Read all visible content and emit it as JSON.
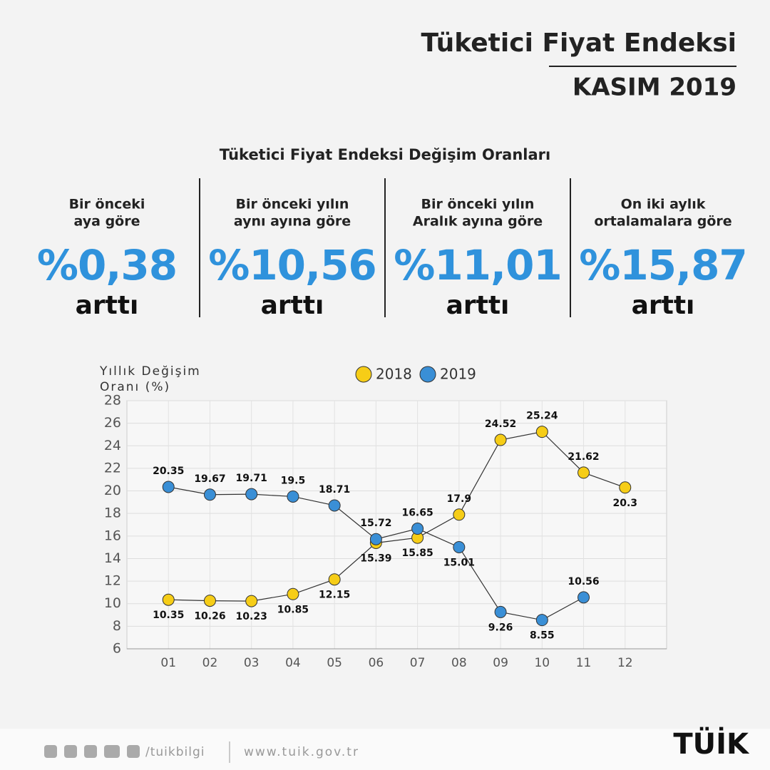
{
  "header": {
    "title": "Tüketici Fiyat Endeksi",
    "subtitle": "KASIM 2019"
  },
  "section_title": "Tüketici Fiyat Endeksi Değişim Oranları",
  "stats": [
    {
      "label_lines": [
        "Bir önceki",
        "aya göre"
      ],
      "value": "%0,38",
      "note": "arttı"
    },
    {
      "label_lines": [
        "Bir önceki yılın",
        "aynı ayına göre"
      ],
      "value": "%10,56",
      "note": "arttı"
    },
    {
      "label_lines": [
        "Bir önceki yılın",
        "Aralık ayına göre"
      ],
      "value": "%11,01",
      "note": "arttı"
    },
    {
      "label_lines": [
        "On iki aylık",
        "ortalamalara göre"
      ],
      "value": "%15,87",
      "note": "arttı"
    }
  ],
  "chart_data": {
    "type": "line",
    "y_label_lines": [
      "Yıllık Değişim",
      "Oranı (%)"
    ],
    "categories": [
      "01",
      "02",
      "03",
      "04",
      "05",
      "06",
      "07",
      "08",
      "09",
      "10",
      "11",
      "12"
    ],
    "series": [
      {
        "name": "2018",
        "color": "#f6cd17",
        "values": [
          10.35,
          10.26,
          10.23,
          10.85,
          12.15,
          15.39,
          15.85,
          17.9,
          24.52,
          25.24,
          21.62,
          20.3
        ]
      },
      {
        "name": "2019",
        "color": "#3a8fd6",
        "values": [
          20.35,
          19.67,
          19.71,
          19.5,
          18.71,
          15.72,
          16.65,
          15.01,
          9.26,
          8.55,
          10.56,
          null
        ]
      }
    ],
    "ylim": [
      6,
      28
    ],
    "yticks": [
      6,
      8,
      10,
      12,
      14,
      16,
      18,
      20,
      22,
      24,
      26,
      28
    ],
    "grid": true
  },
  "footer": {
    "handle": "/tuikbilgi",
    "url": "www.tuik.gov.tr",
    "logo": "TÜİK"
  }
}
